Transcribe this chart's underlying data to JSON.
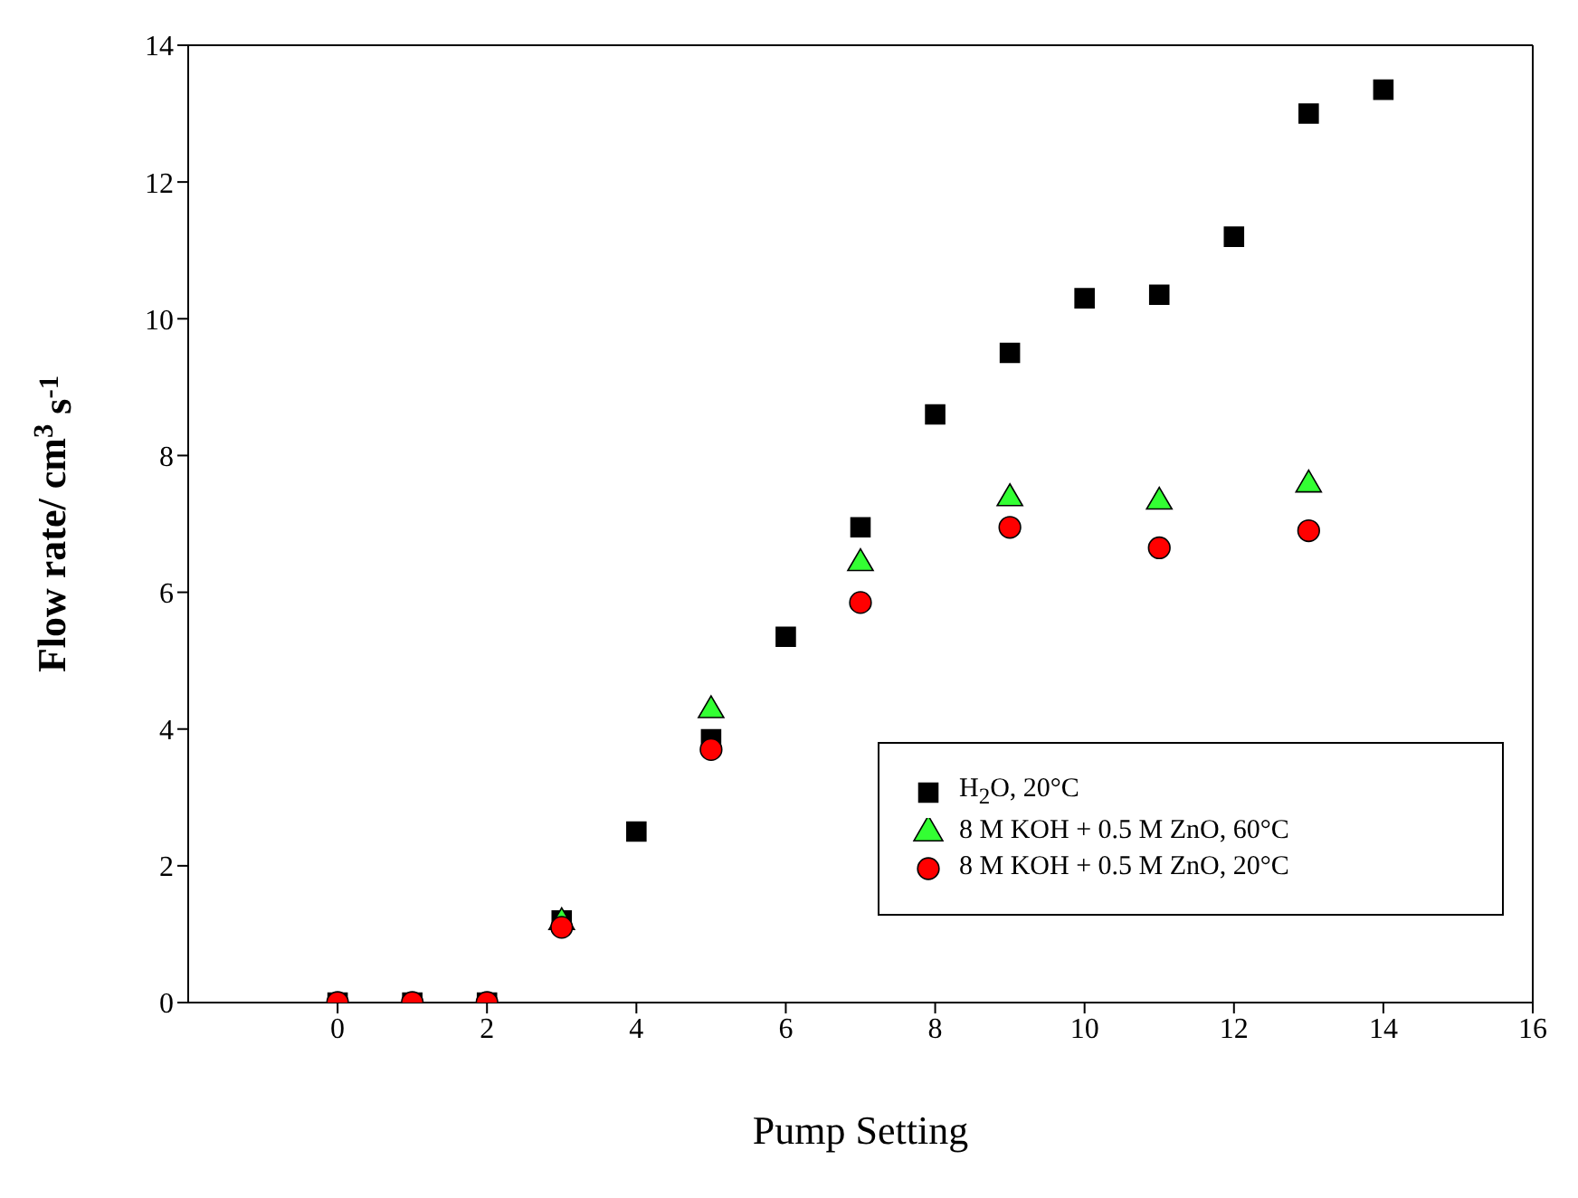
{
  "chart_data": {
    "type": "scatter",
    "xlabel": "Pump Setting",
    "ylabel": "Flow rate/ cm$^{3}$ s$^{-1}$",
    "xlim": [
      -2,
      16
    ],
    "xticks": [
      0,
      2,
      4,
      6,
      8,
      10,
      12,
      14,
      16
    ],
    "ylim": [
      0,
      14
    ],
    "yticks": [
      0,
      2,
      4,
      6,
      8,
      10,
      12,
      14
    ],
    "grid": false,
    "legend": "bottom right",
    "series": [
      {
        "name": "H$_{2}$O, 20°C",
        "color": "#000000",
        "marker": "square",
        "x": [
          0,
          1,
          2,
          3,
          4,
          5,
          6,
          7,
          8,
          9,
          10,
          11,
          12,
          13,
          14
        ],
        "values": [
          0,
          0,
          0,
          1.2,
          2.5,
          3.85,
          5.35,
          6.95,
          8.6,
          9.5,
          10.3,
          10.35,
          11.2,
          13,
          13.35
        ]
      },
      {
        "name": "8 M KOH + 0.5 M ZnO, 60°C",
        "color": "#33ff33",
        "marker": "triangle",
        "x": [
          3,
          5,
          7,
          9,
          11,
          13
        ],
        "values": [
          1.2,
          4.3,
          6.45,
          7.4,
          7.35,
          7.6
        ]
      },
      {
        "name": "8 M KOH + 0.5 M ZnO, 20°C",
        "color": "#ff0000",
        "marker": "circle",
        "x": [
          0,
          1,
          2,
          3,
          5,
          7,
          9,
          11,
          13
        ],
        "values": [
          0,
          0,
          0,
          1.1,
          3.7,
          5.85,
          6.95,
          6.65,
          6.9
        ]
      }
    ]
  }
}
